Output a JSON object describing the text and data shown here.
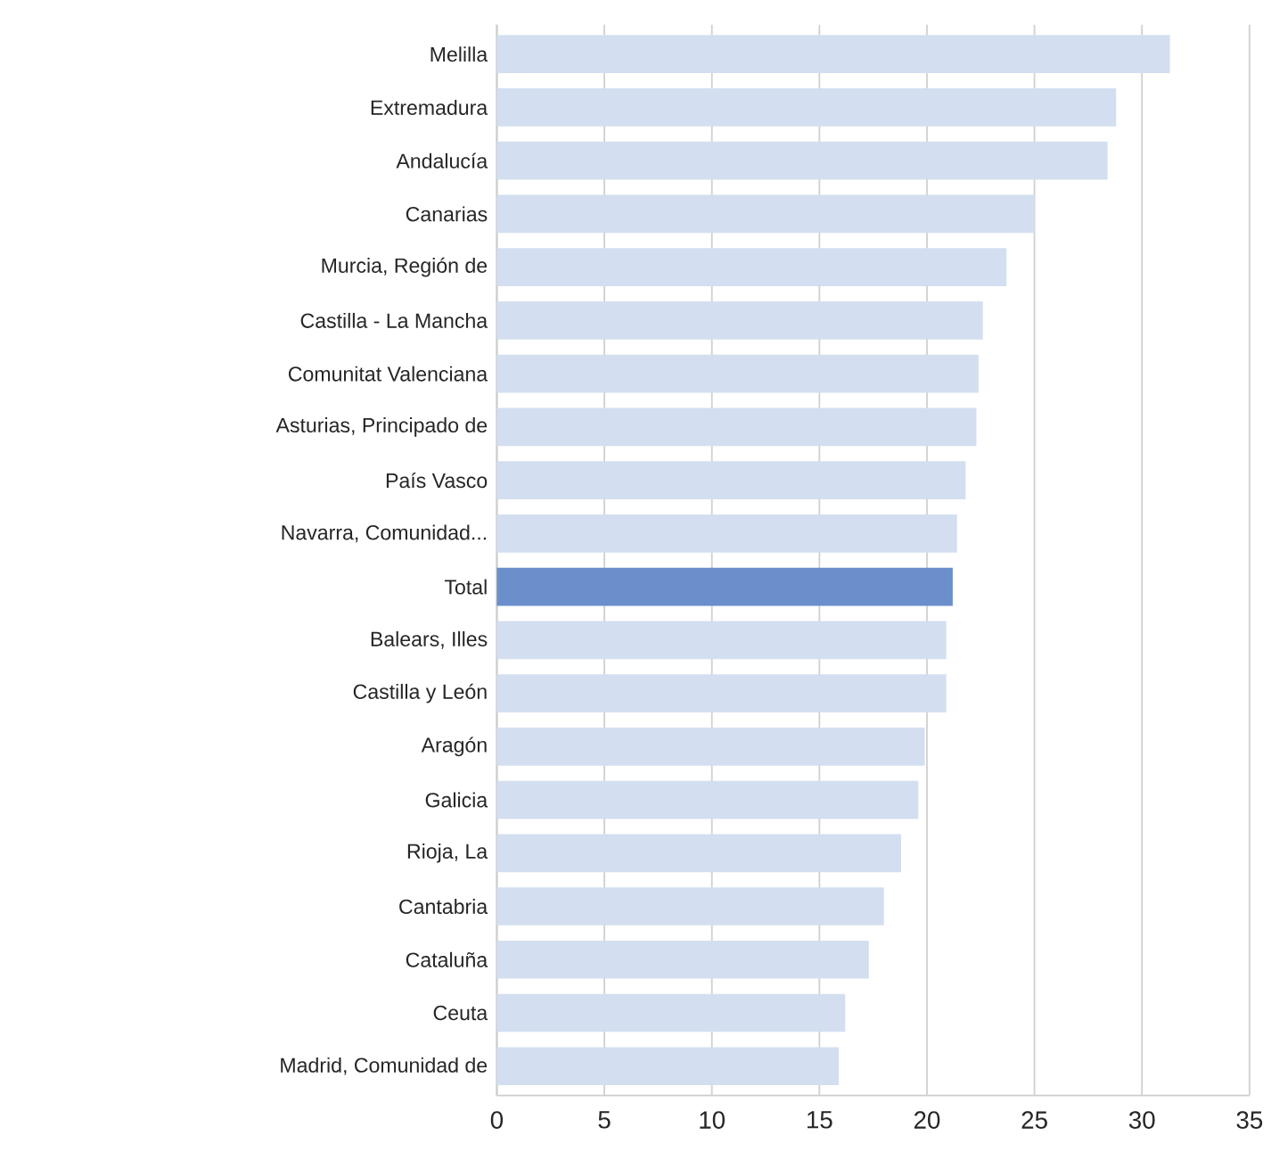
{
  "chart_data": {
    "type": "bar",
    "orientation": "horizontal",
    "categories": [
      "Melilla",
      "Extremadura",
      "Andalucía",
      "Canarias",
      "Murcia, Región de",
      "Castilla - La Mancha",
      "Comunitat Valenciana",
      "Asturias, Principado de",
      "País Vasco",
      "Navarra, Comunidad...",
      "Total",
      "Balears, Illes",
      "Castilla y León",
      "Aragón",
      "Galicia",
      "Rioja, La",
      "Cantabria",
      "Cataluña",
      "Ceuta",
      "Madrid, Comunidad de"
    ],
    "values": [
      31.3,
      28.8,
      28.4,
      25.0,
      23.7,
      22.6,
      22.4,
      22.3,
      21.8,
      21.4,
      21.2,
      20.9,
      20.9,
      19.9,
      19.6,
      18.8,
      18.0,
      17.3,
      16.2,
      15.9
    ],
    "colors": [
      "#d3dff0",
      "#d3dff0",
      "#d3dff0",
      "#d3dff0",
      "#d3dff0",
      "#d3dff0",
      "#d3dff0",
      "#d3dff0",
      "#d3dff0",
      "#d3dff0",
      "#6a8fcb",
      "#d3dff0",
      "#d3dff0",
      "#d3dff0",
      "#d3dff0",
      "#d3dff0",
      "#d3dff0",
      "#d3dff0",
      "#d3dff0",
      "#d3dff0"
    ],
    "xlim": [
      0,
      35
    ],
    "xticks": [
      0,
      5,
      10,
      15,
      20,
      25,
      30,
      35
    ],
    "grid": "x"
  }
}
